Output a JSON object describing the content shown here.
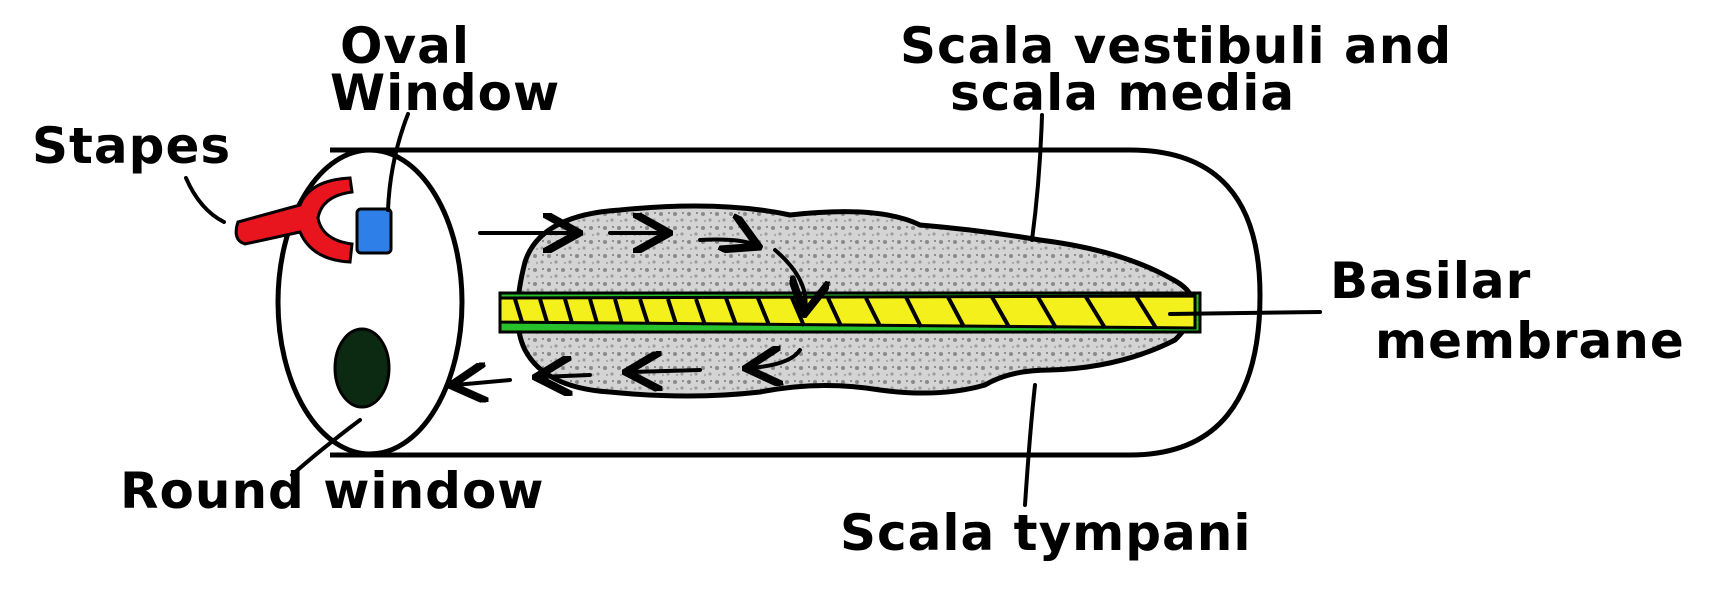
{
  "labels": {
    "oval_line1": "Oval",
    "oval_line2": "Window",
    "stapes": "Stapes",
    "round_window": "Round window",
    "vestibuli_line1": "Scala vestibuli and",
    "vestibuli_line2": "scala media",
    "basilar_line1": "Basilar",
    "basilar_line2": "membrane",
    "tympani": "Scala tympani"
  },
  "colors": {
    "outline": "#000000",
    "stapes": "#e8141e",
    "oval_window": "#2f7fe8",
    "round_window": "#0c2a12",
    "fluid": "#cfcfcf",
    "basilar_membrane": "#f4f01c",
    "membrane_edge": "#27c22b"
  }
}
